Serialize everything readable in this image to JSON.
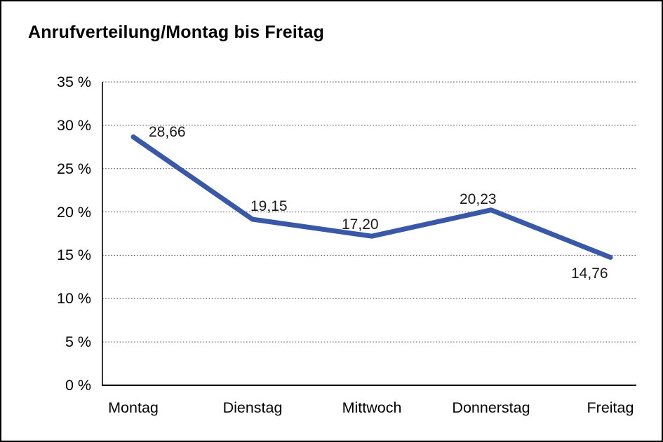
{
  "chart_data": {
    "type": "line",
    "title": "Anrufverteilung/Montag bis Freitag",
    "categories": [
      "Montag",
      "Dienstag",
      "Mittwoch",
      "Donnerstag",
      "Freitag"
    ],
    "series": [
      {
        "name": "Anrufverteilung",
        "values": [
          28.66,
          19.15,
          17.2,
          20.23,
          14.76
        ]
      }
    ],
    "point_labels": [
      "28,66",
      "19,15",
      "17,20",
      "20,23",
      "14,76"
    ],
    "y_tick_labels": [
      "0 %",
      "5 %",
      "10 %",
      "15 %",
      "20 %",
      "25 %",
      "30 %",
      "35 %"
    ],
    "y_tick_values": [
      0,
      5,
      10,
      15,
      20,
      25,
      30,
      35
    ],
    "ylim": [
      0,
      35
    ],
    "xlabel": "",
    "ylabel": "",
    "legend": "none",
    "grid": "horizontal-dotted",
    "colors": {
      "line": "#3A58A8",
      "axis": "#000000",
      "gridline": "#3c3c3c",
      "text": "#000000",
      "background": "#ffffff"
    }
  }
}
